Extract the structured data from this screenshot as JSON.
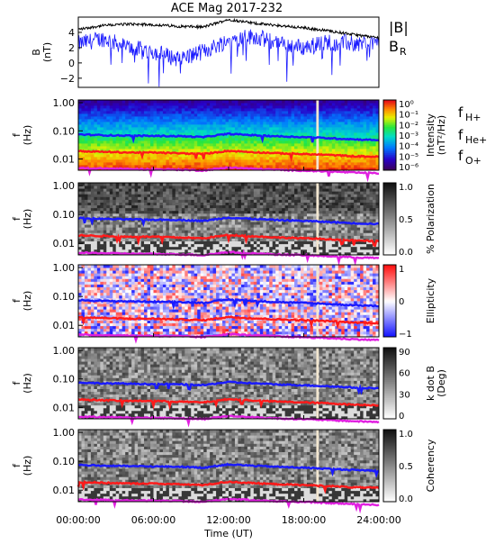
{
  "chart_data": {
    "type": "spectrogram",
    "title": "ACE Mag 2017-232",
    "x_axis": {
      "label": "Time (UT)",
      "ticks": [
        "00:00:00",
        "06:00:00",
        "12:00:00",
        "18:00:00",
        "24:00:00"
      ],
      "range_hours": [
        0,
        24
      ]
    },
    "data_gap_hours": [
      19.0,
      19.2
    ],
    "line_series": [
      {
        "name_parts": [
          "f",
          "H+"
        ],
        "color": "#1a1aff",
        "hours": [
          0,
          2,
          4,
          6,
          8,
          10,
          12,
          14,
          16,
          18,
          20,
          22,
          24
        ],
        "freq_hz": [
          0.075,
          0.07,
          0.068,
          0.066,
          0.065,
          0.06,
          0.078,
          0.07,
          0.064,
          0.06,
          0.055,
          0.05,
          0.047
        ]
      },
      {
        "name_parts": [
          "f",
          "He+"
        ],
        "color": "#ff1a1a",
        "hours": [
          0,
          2,
          4,
          6,
          8,
          10,
          12,
          14,
          16,
          18,
          20,
          22,
          24
        ],
        "freq_hz": [
          0.019,
          0.018,
          0.017,
          0.017,
          0.016,
          0.015,
          0.0195,
          0.0175,
          0.016,
          0.015,
          0.014,
          0.0125,
          0.012
        ]
      },
      {
        "name_parts": [
          "f",
          "O+"
        ],
        "color": "#e020e0",
        "hours": [
          0,
          2,
          4,
          6,
          8,
          10,
          12,
          14,
          16,
          18,
          20,
          22,
          24
        ],
        "freq_hz": [
          0.0047,
          0.0046,
          0.0044,
          0.0043,
          0.0042,
          0.0039,
          0.005,
          0.0045,
          0.0041,
          0.0039,
          0.0036,
          0.0033,
          0.0031
        ]
      }
    ],
    "panels": [
      {
        "id": "field",
        "type": "line",
        "ylabel": "B\n(nT)",
        "ylim": [
          -3.2,
          6
        ],
        "yticks": [
          "4",
          "2",
          "0",
          "−2"
        ],
        "ytick_values": [
          4,
          2,
          0,
          -2
        ],
        "legend": [
          {
            "text": "|B|",
            "color": "#000000"
          },
          {
            "text": "B",
            "sub": "R",
            "color": "#1a1aff"
          }
        ],
        "series": [
          {
            "name": "|B|",
            "color": "#000000",
            "hours": [
              0,
              2,
              4,
              6,
              8,
              10,
              12,
              14,
              16,
              18,
              20,
              22,
              24
            ],
            "values": [
              4.4,
              4.9,
              5.1,
              5.0,
              4.8,
              4.7,
              5.7,
              5.2,
              4.9,
              4.6,
              4.2,
              3.7,
              3.3
            ]
          },
          {
            "name": "B_R",
            "color": "#1a1aff",
            "hours": [
              0,
              2,
              4,
              6,
              8,
              10,
              12,
              14,
              16,
              18,
              20,
              22,
              24
            ],
            "values": [
              2.5,
              3.2,
              2.0,
              1.5,
              0.5,
              1.5,
              3.0,
              3.5,
              2.5,
              2.0,
              2.8,
              2.5,
              2.8
            ]
          }
        ]
      },
      {
        "id": "intensity",
        "type": "heatmap",
        "ylabel": "f\n(Hz)",
        "yticks": [
          "1.00",
          "0.10",
          "0.01"
        ],
        "colorbar": {
          "label": "Intensity\n(nT²/Hz)",
          "palette": "rainbow",
          "ticks": [
            "10⁰",
            "10⁻¹",
            "10⁻²",
            "10⁻³",
            "10⁻⁴",
            "10⁻⁵",
            "10⁻⁶"
          ]
        }
      },
      {
        "id": "polarization",
        "type": "heatmap",
        "ylabel": "f\n(Hz)",
        "yticks": [
          "1.00",
          "0.10",
          "0.01"
        ],
        "colorbar": {
          "label": "% Polarization",
          "palette": "gray",
          "ticks": [
            "1.0",
            "0.5",
            "0.0"
          ]
        }
      },
      {
        "id": "ellipticity",
        "type": "heatmap",
        "ylabel": "f\n(Hz)",
        "yticks": [
          "1.00",
          "0.10",
          "0.01"
        ],
        "colorbar": {
          "label": "Ellipticity",
          "palette": "redblue",
          "ticks": [
            "1",
            "0",
            "−1"
          ]
        }
      },
      {
        "id": "kdotb",
        "type": "heatmap",
        "ylabel": "f\n(Hz)",
        "yticks": [
          "1.00",
          "0.10",
          "0.01"
        ],
        "colorbar": {
          "label": "k dot B\n(Deg)",
          "palette": "gray",
          "ticks": [
            "90",
            "60",
            "30",
            "0"
          ]
        }
      },
      {
        "id": "coherency",
        "type": "heatmap",
        "ylabel": "f\n(Hz)",
        "yticks": [
          "1.00",
          "0.10",
          "0.01"
        ],
        "colorbar": {
          "label": "Coherency",
          "palette": "gray",
          "ticks": [
            "1.0",
            "0.5",
            "0.0"
          ]
        }
      }
    ]
  }
}
